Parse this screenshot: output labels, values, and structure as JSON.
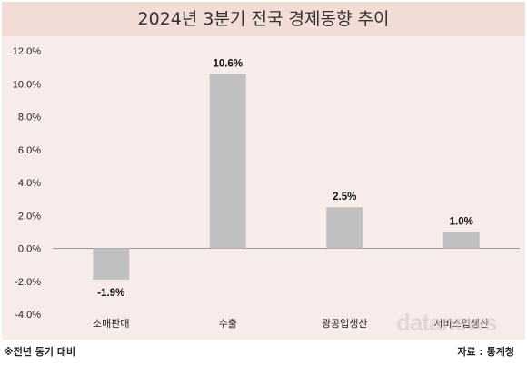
{
  "chart_data": {
    "type": "bar",
    "title": "2024년 3분기 전국 경제동향 추이",
    "categories": [
      "소매판매",
      "수출",
      "광공업생산",
      "서비스업생산"
    ],
    "values": [
      -1.9,
      10.6,
      2.5,
      1.0
    ],
    "data_labels": [
      "-1.9%",
      "10.6%",
      "2.5%",
      "1.0%"
    ],
    "ylim": [
      -4.0,
      12.0
    ],
    "yticks": [
      12.0,
      10.0,
      8.0,
      6.0,
      4.0,
      2.0,
      0.0,
      -2.0,
      -4.0
    ],
    "ytick_labels": [
      "12.0%",
      "10.0%",
      "8.0%",
      "6.0%",
      "4.0%",
      "2.0%",
      "0.0%",
      "-2.0%",
      "-4.0%"
    ],
    "grid": false,
    "legend": "none",
    "colors": {
      "bar": "#c0c0c0",
      "title_band": "#f2dcd6",
      "plot_background": "#f8ecea",
      "zero_line": "#9a9a9a"
    }
  },
  "footer": {
    "note": "※전년 동기 대비",
    "source": "자료 : 통계청"
  },
  "watermark": "datanews"
}
